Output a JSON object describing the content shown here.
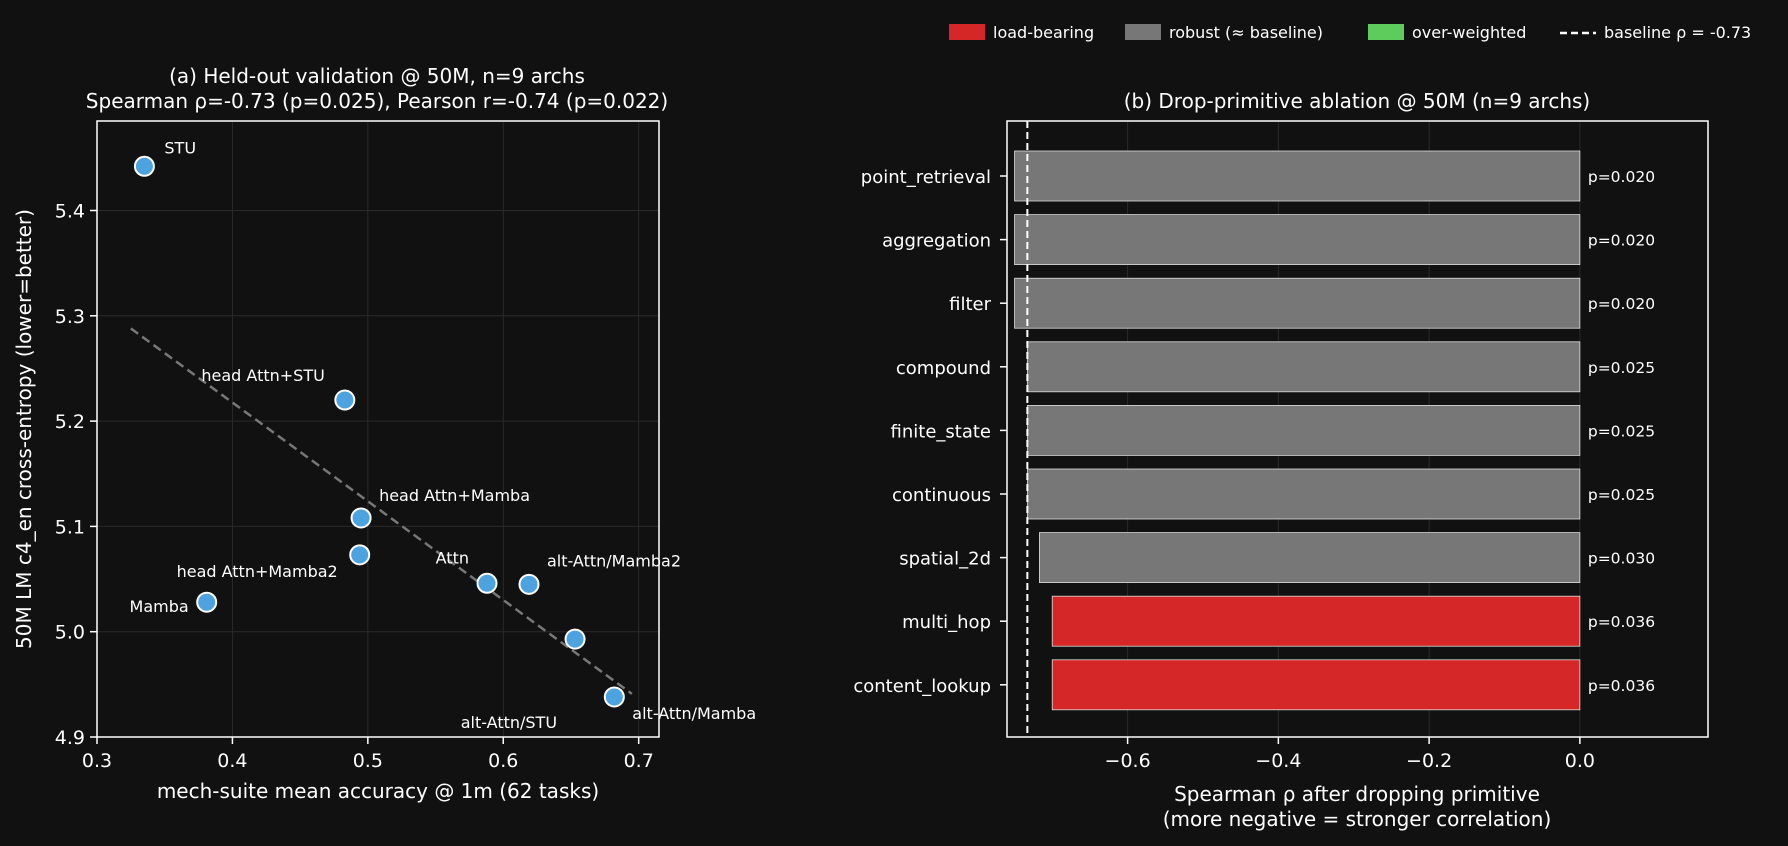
{
  "colors": {
    "background": "#111111",
    "point": "#4da3e0",
    "load_bearing": "#d62728",
    "robust": "#777777",
    "over_weighted": "#5dcc5d",
    "fit_line": "#777777",
    "grid": "#2a2a2a"
  },
  "legend": {
    "load_bearing": "load-bearing",
    "robust": "robust (≈ baseline)",
    "over_weighted": "over-weighted",
    "baseline": "baseline ρ = -0.73"
  },
  "chart_data": [
    {
      "type": "scatter",
      "title": "(a) Held-out validation @ 50M, n=9 archs",
      "subtitle": "Spearman ρ=-0.73 (p=0.025),  Pearson r=-0.74 (p=0.022)",
      "xlabel": "mech-suite mean accuracy @ 1m (62 tasks)",
      "ylabel": "50M LM c4_en cross-entropy (lower=better)",
      "xlim": [
        0.3,
        0.715
      ],
      "ylim": [
        4.9,
        5.485
      ],
      "xticks": [
        "0.3",
        "0.4",
        "0.5",
        "0.6",
        "0.7"
      ],
      "yticks": [
        "4.9",
        "5.0",
        "5.1",
        "5.2",
        "5.3",
        "5.4"
      ],
      "grid": true,
      "points": [
        {
          "label": "STU",
          "x": 0.335,
          "y": 5.442
        },
        {
          "label": "head Attn+STU",
          "x": 0.483,
          "y": 5.22
        },
        {
          "label": "head Attn+Mamba",
          "x": 0.495,
          "y": 5.108
        },
        {
          "label": "head Attn+Mamba2",
          "x": 0.494,
          "y": 5.073
        },
        {
          "label": "Mamba",
          "x": 0.381,
          "y": 5.028
        },
        {
          "label": "Attn",
          "x": 0.588,
          "y": 5.046
        },
        {
          "label": "alt-Attn/Mamba2",
          "x": 0.619,
          "y": 5.045
        },
        {
          "label": "alt-Attn/STU",
          "x": 0.653,
          "y": 4.993
        },
        {
          "label": "alt-Attn/Mamba",
          "x": 0.682,
          "y": 4.938
        }
      ],
      "fit_line": {
        "x": [
          0.325,
          0.695
        ],
        "y": [
          5.288,
          4.941
        ]
      }
    },
    {
      "type": "bar",
      "orientation": "horizontal",
      "title": "(b) Drop-primitive ablation @ 50M (n=9 archs)",
      "xlabel": "Spearman ρ after dropping primitive",
      "xlabel2": "(more negative = stronger correlation)",
      "xlim": [
        -0.76,
        0.17
      ],
      "xticks": [
        "−0.6",
        "−0.4",
        "−0.2",
        "0.0"
      ],
      "grid": true,
      "baseline": -0.733,
      "bars": [
        {
          "label": "point_retrieval",
          "value": -0.75,
          "p": "p=0.020",
          "status": "robust"
        },
        {
          "label": "aggregation",
          "value": -0.75,
          "p": "p=0.020",
          "status": "robust"
        },
        {
          "label": "filter",
          "value": -0.75,
          "p": "p=0.020",
          "status": "robust"
        },
        {
          "label": "compound",
          "value": -0.733,
          "p": "p=0.025",
          "status": "robust"
        },
        {
          "label": "finite_state",
          "value": -0.733,
          "p": "p=0.025",
          "status": "robust"
        },
        {
          "label": "continuous",
          "value": -0.733,
          "p": "p=0.025",
          "status": "robust"
        },
        {
          "label": "spatial_2d",
          "value": -0.717,
          "p": "p=0.030",
          "status": "robust"
        },
        {
          "label": "multi_hop",
          "value": -0.7,
          "p": "p=0.036",
          "status": "load_bearing"
        },
        {
          "label": "content_lookup",
          "value": -0.7,
          "p": "p=0.036",
          "status": "load_bearing"
        }
      ]
    }
  ]
}
